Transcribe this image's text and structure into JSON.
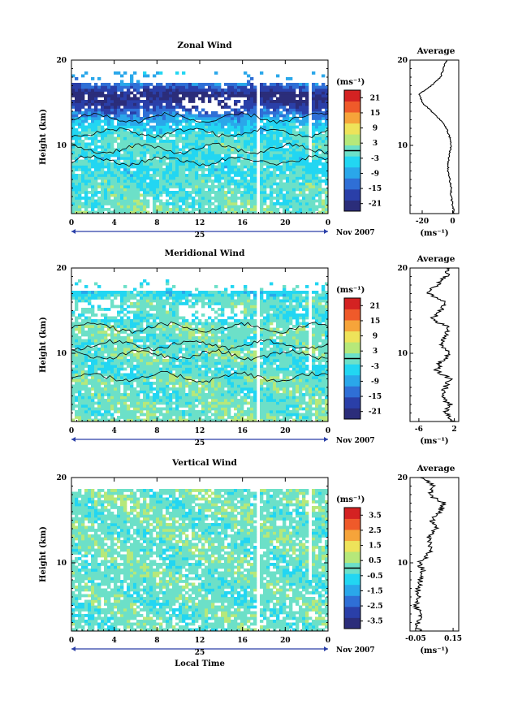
{
  "colors": {
    "palette": [
      "#2b2d7a",
      "#2a3fa8",
      "#2f6fd6",
      "#2aa7ea",
      "#22d6f2",
      "#6ce0c8",
      "#b6e87a",
      "#eee35a",
      "#f6a43a",
      "#ef5a2a",
      "#d42222"
    ],
    "contour": "#000000",
    "frame": "#000000"
  },
  "shared": {
    "ylabel": "Height (km)",
    "xlabel": "Local Time",
    "date_day": "25",
    "date_month": "Nov 2007",
    "unit": "(ms⁻¹)",
    "profile_title": "Average"
  },
  "chart_data": [
    {
      "type": "heatmap",
      "title": "Zonal Wind",
      "ylabel": "Height (km)",
      "x_ticks": [
        "0",
        "4",
        "8",
        "12",
        "16",
        "20",
        "0"
      ],
      "xlim": [
        0,
        24
      ],
      "y_ticks": [
        "10",
        "20"
      ],
      "ylim": [
        2,
        20
      ],
      "colorbar": {
        "label": "(ms⁻¹)",
        "ticks": [
          "21",
          "15",
          "9",
          "3",
          "-3",
          "-9",
          "-15",
          "-21"
        ],
        "range": [
          -24,
          24
        ]
      },
      "profile": {
        "title": "Average",
        "xlabel": "(ms⁻¹)",
        "x_ticks": [
          "-20",
          "0"
        ],
        "xlim": [
          -28,
          4
        ],
        "height_km": [
          2,
          3,
          4,
          5,
          6,
          7,
          8,
          9,
          10,
          11,
          12,
          13,
          14,
          15,
          16,
          17,
          18,
          19,
          20
        ],
        "values": [
          1,
          0,
          -1,
          -1,
          -2,
          -3,
          -3,
          -2,
          -1,
          -2,
          -4,
          -8,
          -14,
          -20,
          -22,
          -14,
          -8,
          -6,
          -4
        ]
      }
    },
    {
      "type": "heatmap",
      "title": "Meridional Wind",
      "ylabel": "Height (km)",
      "x_ticks": [
        "0",
        "4",
        "8",
        "12",
        "16",
        "20",
        "0"
      ],
      "xlim": [
        0,
        24
      ],
      "y_ticks": [
        "10",
        "20"
      ],
      "ylim": [
        2,
        20
      ],
      "colorbar": {
        "label": "(ms⁻¹)",
        "ticks": [
          "21",
          "15",
          "9",
          "3",
          "-3",
          "-9",
          "-15",
          "-21"
        ],
        "range": [
          -24,
          24
        ]
      },
      "profile": {
        "title": "Average",
        "xlabel": "(ms⁻¹)",
        "x_ticks": [
          "-6",
          "2"
        ],
        "xlim": [
          -8,
          3
        ],
        "height_km": [
          2,
          3,
          4,
          5,
          6,
          7,
          8,
          9,
          10,
          11,
          12,
          13,
          14,
          15,
          16,
          17,
          18,
          19,
          20
        ],
        "values": [
          2,
          0,
          1,
          -1,
          0,
          1,
          -2,
          -1,
          1,
          -1,
          0,
          1,
          -3,
          -1,
          0,
          -4,
          -2,
          0,
          1
        ]
      }
    },
    {
      "type": "heatmap",
      "title": "Vertical Wind",
      "ylabel": "Height (km)",
      "xlabel": "Local Time",
      "x_ticks": [
        "0",
        "4",
        "8",
        "12",
        "16",
        "20",
        "0"
      ],
      "xlim": [
        0,
        24
      ],
      "y_ticks": [
        "10",
        "20"
      ],
      "ylim": [
        2,
        20
      ],
      "colorbar": {
        "label": "(ms⁻¹)",
        "ticks": [
          "3.5",
          "2.5",
          "1.5",
          "0.5",
          "-0.5",
          "-1.5",
          "-2.5",
          "-3.5"
        ],
        "range": [
          -4,
          4
        ]
      },
      "profile": {
        "title": "Average",
        "xlabel": "(ms⁻¹)",
        "x_ticks": [
          "-0.05",
          "0.15"
        ],
        "xlim": [
          -0.08,
          0.18
        ],
        "height_km": [
          2,
          3,
          4,
          5,
          6,
          7,
          8,
          9,
          10,
          11,
          12,
          13,
          14,
          15,
          16,
          17,
          18,
          19,
          20
        ],
        "values": [
          -0.03,
          -0.04,
          -0.02,
          -0.05,
          -0.03,
          -0.04,
          -0.02,
          -0.01,
          -0.03,
          0.02,
          0.03,
          0.02,
          0.06,
          0.04,
          0.08,
          0.1,
          0.02,
          0.05,
          -0.02
        ]
      }
    }
  ]
}
